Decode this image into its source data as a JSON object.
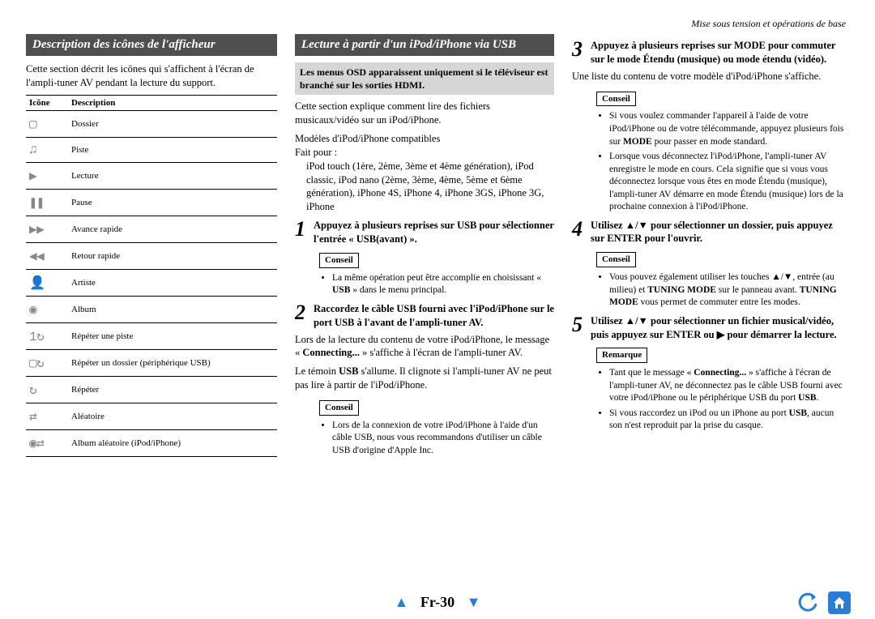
{
  "header": {
    "breadcrumb": "Mise sous tension et opérations de base"
  },
  "col1": {
    "heading": "Description des icônes de l'afficheur",
    "intro": "Cette section décrit les icônes qui s'affichent à l'écran de l'ampli-tuner AV pendant la lecture du support.",
    "table": {
      "col_icon": "Icône",
      "col_desc": "Description",
      "rows": [
        {
          "glyph": "▢",
          "desc": "Dossier"
        },
        {
          "glyph": "♫",
          "desc": "Piste"
        },
        {
          "glyph": "▶",
          "desc": "Lecture"
        },
        {
          "glyph": "❚❚",
          "desc": "Pause"
        },
        {
          "glyph": "▶▶",
          "desc": "Avance rapide"
        },
        {
          "glyph": "◀◀",
          "desc": "Retour rapide"
        },
        {
          "glyph": "👤",
          "desc": "Artiste"
        },
        {
          "glyph": "◉",
          "desc": "Album"
        },
        {
          "glyph": "1↻",
          "desc": "Répéter une piste"
        },
        {
          "glyph": "▢↻",
          "desc": "Répéter un dossier (périphérique USB)"
        },
        {
          "glyph": "↻",
          "desc": "Répéter"
        },
        {
          "glyph": "⇄",
          "desc": "Aléatoire"
        },
        {
          "glyph": "◉⇄",
          "desc": "Album aléatoire (iPod/iPhone)"
        }
      ]
    }
  },
  "col2": {
    "heading": "Lecture à partir d'un iPod/iPhone via USB",
    "osd_note": "Les menus OSD apparaissent uniquement si le téléviseur est branché sur les sorties HDMI.",
    "intro": "Cette section explique comment lire des fichiers musicaux/vidéo sur un iPod/iPhone.",
    "models_label": "Modèles d'iPod/iPhone compatibles",
    "fait_pour": "Fait pour :",
    "models_list": "iPod touch (1ère, 2ème, 3ème et 4ème génération), iPod classic, iPod  nano (2ème, 3ème, 4ème, 5ème et 6ème génération), iPhone 4S, iPhone 4, iPhone 3GS, iPhone 3G, iPhone",
    "step1": {
      "num": "1",
      "lead_a": "Appuyez à plusieurs reprises sur ",
      "lead_b": "USB",
      "lead_c": " pour sélectionner l'entrée « USB(avant) ».",
      "hint": "Conseil",
      "bullet1a": "La même opération peut être accomplie en choisissant « ",
      "bullet1b": "USB",
      "bullet1c": " » dans le menu principal."
    },
    "step2": {
      "num": "2",
      "lead": "Raccordez le câble USB  fourni avec l'iPod/iPhone sur le port USB à l'avant de l'ampli-tuner AV.",
      "p1a": "Lors de la lecture du contenu de votre iPod/iPhone, le message « ",
      "p1b": "Connecting...",
      "p1c": " » s'affiche à l'écran de l'ampli-tuner AV.",
      "p2a": "Le témoin ",
      "p2b": "USB",
      "p2c": " s'allume. Il clignote si l'ampli-tuner AV ne peut pas lire à partir de l'iPod/iPhone.",
      "hint": "Conseil",
      "bullet1": "Lors de la connexion de votre iPod/iPhone à l'aide d'un câble USB, nous vous recommandons d'utiliser un câble USB d'origine d'Apple Inc."
    }
  },
  "col3": {
    "step3": {
      "num": "3",
      "lead_a": "Appuyez à plusieurs reprises sur ",
      "lead_b": "MODE",
      "lead_c": " pour commuter sur le mode Étendu (musique) ou mode étendu (vidéo).",
      "p1": "Une liste du contenu de votre modèle d'iPod/iPhone s'affiche.",
      "hint": "Conseil",
      "bullet1a": "Si vous voulez commander l'appareil à l'aide de votre iPod/iPhone ou de votre télécommande, appuyez plusieurs fois sur ",
      "bullet1b": "MODE",
      "bullet1c": " pour passer en mode standard.",
      "bullet2": "Lorsque vous déconnectez l'iPod/iPhone, l'ampli-tuner AV enregistre le mode en cours. Cela signifie que si vous vous déconnectez lorsque vous êtes en mode Étendu (musique), l'ampli-tuner AV démarre en mode Étendu (musique) lors de la prochaine connexion à l'iPod/iPhone."
    },
    "step4": {
      "num": "4",
      "lead": "Utilisez ▲/▼ pour sélectionner un dossier, puis appuyez sur ENTER pour l'ouvrir.",
      "hint": "Conseil",
      "bullet1a": "Vous pouvez également utiliser les touches ▲/▼, entrée (au milieu) et ",
      "bullet1b": "TUNING MODE",
      "bullet1c": " sur le panneau avant. ",
      "bullet1d": "TUNING MODE",
      "bullet1e": " vous permet de commuter entre les modes."
    },
    "step5": {
      "num": "5",
      "lead": "Utilisez ▲/▼ pour sélectionner un fichier musical/vidéo, puis appuyez sur ENTER ou ▶ pour démarrer la lecture.",
      "hint": "Remarque",
      "bullet1a": "Tant que le message « ",
      "bullet1b": "Connecting...",
      "bullet1c": " » s'affiche à l'écran de l'ampli-tuner AV, ne déconnectez pas le câble USB fourni avec votre iPod/iPhone ou le périphérique USB du port ",
      "bullet1d": "USB",
      "bullet1e": ".",
      "bullet2a": "Si vous raccordez un iPod ou un iPhone au port ",
      "bullet2b": "USB",
      "bullet2c": ", aucun son n'est reproduit par la prise du casque."
    }
  },
  "footer": {
    "page": "Fr-30"
  }
}
